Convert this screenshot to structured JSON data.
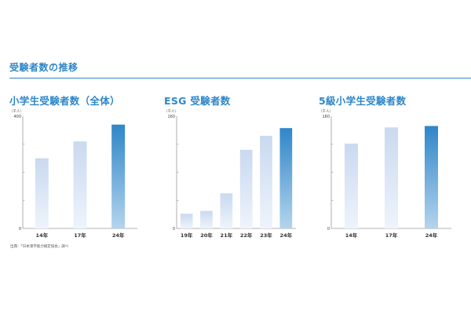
{
  "section_title": "受験者数の推移",
  "source_note": "出典：「日本漢字能力検定協会」調べ",
  "colors": {
    "accent": "#2d86c9",
    "bar_light": "#eef4fb",
    "bar_mid": "#c9d9f0",
    "bar_latest_top": "#2f86c8",
    "bar_latest_bottom": "#b4d4ee"
  },
  "chart_data": [
    {
      "type": "bar",
      "title": "小学生受験者数（全体）",
      "unit": "（千人）",
      "categories": [
        "14年",
        "17年",
        "24年"
      ],
      "values": [
        250,
        310,
        370
      ],
      "ylim": [
        0,
        400
      ],
      "y_ticks": [
        0,
        400
      ],
      "grid": false,
      "highlight": "24年"
    },
    {
      "type": "bar",
      "title": "ESG 受験者数",
      "unit": "（千人）",
      "categories": [
        "19年",
        "20年",
        "21年",
        "22年",
        "23年",
        "24年"
      ],
      "values": [
        21,
        25,
        50,
        112,
        132,
        143
      ],
      "ylim": [
        0,
        160
      ],
      "y_ticks": [
        0,
        160
      ],
      "grid": false,
      "highlight": "24年"
    },
    {
      "type": "bar",
      "title": "5級小学生受験者数",
      "unit": "（千人）",
      "categories": [
        "14年",
        "17年",
        "24年"
      ],
      "values": [
        121,
        144,
        146
      ],
      "ylim": [
        0,
        160
      ],
      "y_ticks": [
        0,
        160
      ],
      "grid": false,
      "highlight": "24年"
    }
  ]
}
